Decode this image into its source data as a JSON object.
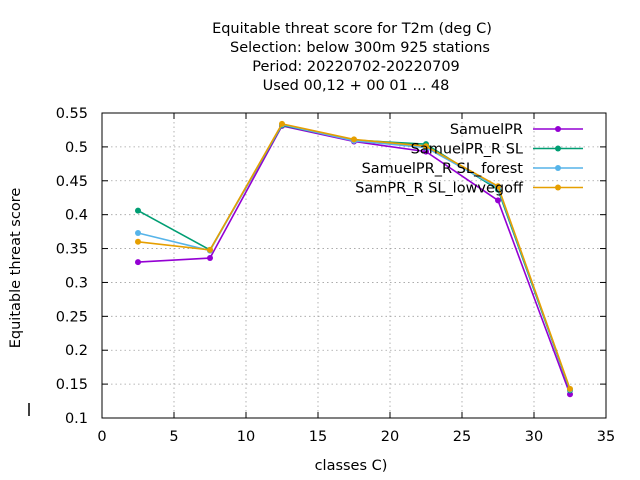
{
  "chart_data": {
    "type": "line",
    "title_lines": [
      "Equitable threat score  for T2m (deg C)",
      "Selection: below 300m    925 stations",
      "Period: 20220702-20220709",
      "Used  00,12  + 00 01 ... 48"
    ],
    "xlabel": "classes C)",
    "ylabel": "Equitable threat score",
    "xlim": [
      0,
      35
    ],
    "ylim": [
      0.1,
      0.55
    ],
    "xticks": [
      "0",
      "5",
      "10",
      "15",
      "20",
      "25",
      "30",
      "35"
    ],
    "yticks": [
      "0.1",
      "0.15",
      "0.2",
      "0.25",
      "0.3",
      "0.35",
      "0.4",
      "0.45",
      "0.5",
      "0.55"
    ],
    "grid": true,
    "legend_position": "top-right",
    "x": [
      2.5,
      7.5,
      12.5,
      17.5,
      22.5,
      27.5,
      32.5
    ],
    "series": [
      {
        "name": "SamuelPR",
        "color": "#9400d3",
        "values": [
          0.33,
          0.336,
          0.531,
          0.508,
          0.493,
          0.421,
          0.135
        ]
      },
      {
        "name": "SamuelPR_R SL",
        "color": "#009e73",
        "values": [
          0.406,
          0.348,
          0.532,
          0.51,
          0.504,
          0.437,
          0.141
        ]
      },
      {
        "name": "SamuelPR_R SL_forest",
        "color": "#56b4e9",
        "values": [
          0.373,
          0.347,
          0.533,
          0.509,
          0.499,
          0.44,
          0.142
        ]
      },
      {
        "name": "SamPR_R SL_lowvegoff",
        "color": "#e69f00",
        "values": [
          0.36,
          0.348,
          0.534,
          0.511,
          0.501,
          0.442,
          0.143
        ]
      }
    ]
  }
}
